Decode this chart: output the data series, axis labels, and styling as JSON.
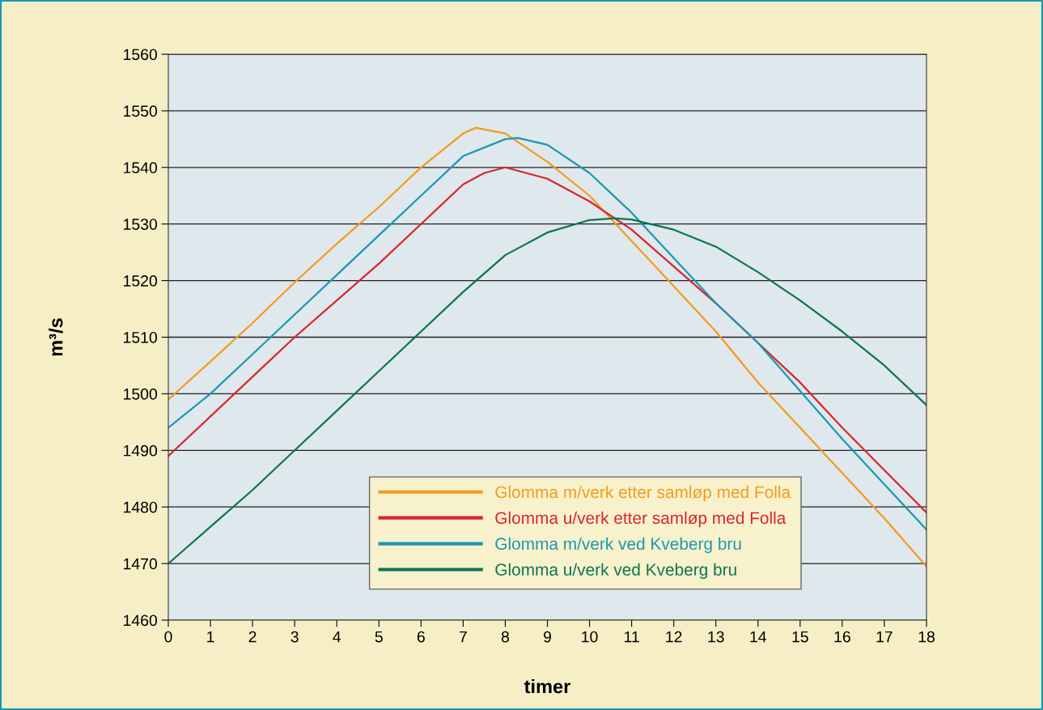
{
  "chart_data": {
    "type": "line",
    "xlabel": "timer",
    "ylabel": "m³/s",
    "xlim": [
      0,
      18
    ],
    "xticks": [
      0,
      1,
      2,
      3,
      4,
      5,
      6,
      7,
      8,
      9,
      10,
      11,
      12,
      13,
      14,
      15,
      16,
      17,
      18
    ],
    "ylim": [
      1460,
      1560
    ],
    "yticks": [
      1460,
      1470,
      1480,
      1490,
      1500,
      1510,
      1520,
      1530,
      1540,
      1550,
      1560
    ],
    "grid": "y",
    "legend": "bottom",
    "marker": "none",
    "line_style": "solid",
    "series": [
      {
        "name": "Glomma m/verk etter samløp med Folla",
        "color": "#f59a1e",
        "x": [
          0,
          1,
          2,
          3,
          4,
          5,
          6,
          7,
          7.3,
          8,
          9,
          10,
          11,
          12,
          13,
          14,
          15,
          16,
          17,
          18
        ],
        "values": [
          1499,
          1505.7,
          1512.5,
          1519.7,
          1526.5,
          1533,
          1540,
          1546,
          1547,
          1546,
          1541,
          1535,
          1527,
          1519,
          1511,
          1502,
          1494,
          1486,
          1478,
          1469.5
        ]
      },
      {
        "name": "Glomma u/verk etter samløp med Folla",
        "color": "#d9262f",
        "x": [
          0,
          1,
          2,
          3,
          4,
          5,
          6,
          7,
          7.5,
          8,
          9,
          10,
          11,
          12,
          13,
          14,
          15,
          16,
          17,
          18
        ],
        "values": [
          1489,
          1496,
          1503,
          1510,
          1516.5,
          1523,
          1530,
          1537,
          1539,
          1540,
          1538,
          1534,
          1529,
          1522.5,
          1516,
          1509,
          1502,
          1494,
          1486.5,
          1479
        ]
      },
      {
        "name": "Glomma m/verk ved Kveberg bru",
        "color": "#1a98b2",
        "x": [
          0,
          1,
          2,
          3,
          4,
          5,
          6,
          7,
          8,
          8.3,
          9,
          10,
          11,
          12,
          13,
          14,
          15,
          16,
          17,
          18
        ],
        "values": [
          1494,
          1500,
          1507,
          1514,
          1521,
          1528,
          1535,
          1542,
          1545,
          1545.2,
          1544,
          1539,
          1532,
          1524,
          1516,
          1509,
          1500.5,
          1492,
          1484,
          1476
        ]
      },
      {
        "name": "Glomma u/verk ved Kveberg bru",
        "color": "#0c7552",
        "x": [
          0,
          1,
          2,
          3,
          4,
          5,
          6,
          7,
          8,
          9,
          10,
          10.6,
          11,
          12,
          13,
          14,
          15,
          16,
          17,
          18
        ],
        "values": [
          1470,
          1476.5,
          1483,
          1490,
          1497,
          1504,
          1511,
          1518,
          1524.5,
          1528.5,
          1530.7,
          1531,
          1530.8,
          1529,
          1526,
          1521.5,
          1516.5,
          1511,
          1505,
          1498
        ]
      }
    ]
  }
}
